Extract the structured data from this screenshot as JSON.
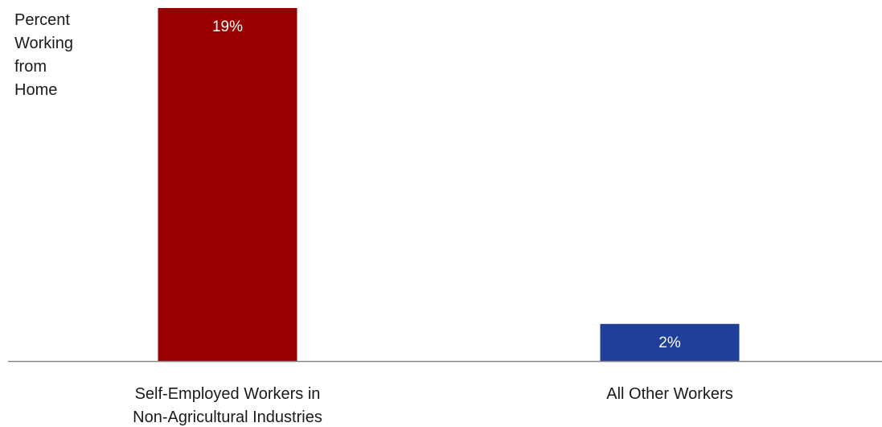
{
  "chart_data": {
    "type": "bar",
    "title": "",
    "ylabel_lines": [
      "Percent",
      "Working",
      "from",
      "Home"
    ],
    "xlabel": "",
    "unit": "%",
    "ylim": [
      0,
      19
    ],
    "grid": false,
    "legend": "none",
    "categories": [
      [
        "Self-Employed Workers in",
        "Non-Agricultural Industries"
      ],
      [
        "All Other Workers"
      ]
    ],
    "values": [
      19,
      2
    ],
    "value_labels": [
      "19%",
      "2%"
    ],
    "colors": [
      "#990000",
      "#1f3f99"
    ],
    "axis_color": "#888888"
  }
}
